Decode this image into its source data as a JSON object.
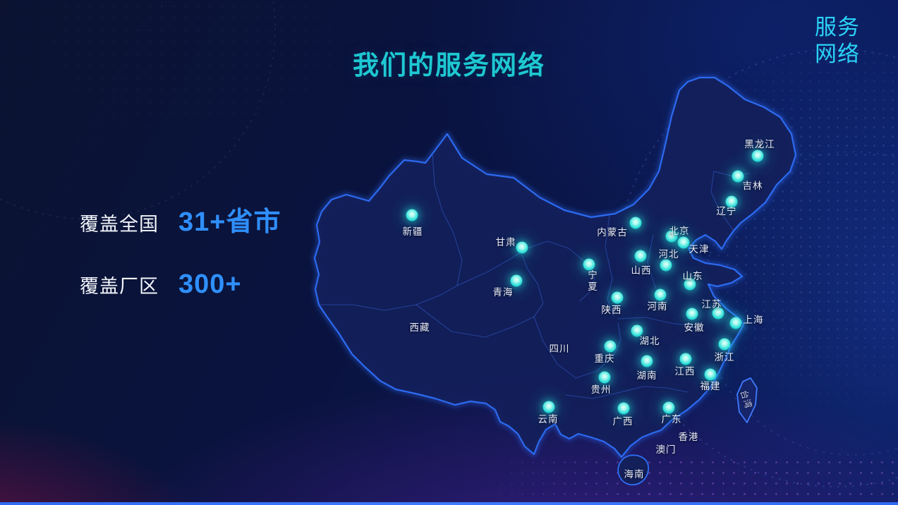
{
  "slide": {
    "title": "我们的服务网络",
    "corner_tag_line1": "服务",
    "corner_tag_line2": "网络"
  },
  "stats": [
    {
      "label": "覆盖全国",
      "value": "31+省市"
    },
    {
      "label": "覆盖厂区",
      "value": "300+"
    }
  ],
  "colors": {
    "title": "#1ec8d2",
    "corner": "#2bd3f7",
    "stat_value": "#2f8ffd",
    "dot": "#2bdfd8",
    "map_border": "#2c6af0",
    "bottom_line": "#2f6bf2"
  },
  "map": {
    "provinces": [
      {
        "name": "黑龙江",
        "dot": [
          1074,
          221
        ],
        "label": [
          1077,
          203
        ]
      },
      {
        "name": "吉林",
        "dot": [
          1046,
          250
        ],
        "label": [
          1067,
          262
        ]
      },
      {
        "name": "辽宁",
        "dot": [
          1037,
          286
        ],
        "label": [
          1030,
          298
        ]
      },
      {
        "name": "内蒙古",
        "dot": [
          901,
          316
        ],
        "label": [
          868,
          328
        ]
      },
      {
        "name": "北京",
        "dot": [
          952,
          335
        ],
        "label": [
          963,
          326
        ]
      },
      {
        "name": "天津",
        "dot": [
          969,
          344
        ],
        "label": [
          991,
          352
        ]
      },
      {
        "name": "河北",
        "dot": [
          944,
          376
        ],
        "label": [
          948,
          359
        ]
      },
      {
        "name": "山西",
        "dot": [
          908,
          363
        ],
        "label": [
          909,
          382
        ]
      },
      {
        "name": "山东",
        "dot": [
          978,
          403
        ],
        "label": [
          982,
          390
        ]
      },
      {
        "name": "新疆",
        "dot": [
          584,
          305
        ],
        "label": [
          585,
          327
        ]
      },
      {
        "name": "甘肃",
        "dot": [
          740,
          351
        ],
        "label": [
          717,
          342
        ]
      },
      {
        "name": "宁夏",
        "dot": [
          835,
          375
        ],
        "label": [
          838,
          399
        ],
        "vertical": true
      },
      {
        "name": "青海",
        "dot": [
          732,
          398
        ],
        "label": [
          713,
          413
        ]
      },
      {
        "name": "西藏",
        "label": [
          595,
          463
        ]
      },
      {
        "name": "陕西",
        "dot": [
          875,
          422
        ],
        "label": [
          867,
          438
        ]
      },
      {
        "name": "河南",
        "dot": [
          936,
          418
        ],
        "label": [
          932,
          433
        ]
      },
      {
        "name": "江苏",
        "dot": [
          1018,
          444
        ],
        "label": [
          1009,
          430
        ]
      },
      {
        "name": "上海",
        "dot": [
          1043,
          458
        ],
        "label": [
          1068,
          452
        ]
      },
      {
        "name": "安徽",
        "dot": [
          981,
          445
        ],
        "label": [
          984,
          463
        ]
      },
      {
        "name": "湖北",
        "dot": [
          903,
          469
        ],
        "label": [
          921,
          482
        ]
      },
      {
        "name": "四川",
        "label": [
          793,
          493
        ]
      },
      {
        "name": "重庆",
        "dot": [
          865,
          491
        ],
        "label": [
          857,
          507
        ]
      },
      {
        "name": "湖南",
        "dot": [
          917,
          512
        ],
        "label": [
          917,
          531
        ]
      },
      {
        "name": "浙江",
        "dot": [
          1027,
          488
        ],
        "label": [
          1027,
          505
        ]
      },
      {
        "name": "江西",
        "dot": [
          972,
          509
        ],
        "label": [
          971,
          525
        ]
      },
      {
        "name": "福建",
        "dot": [
          1007,
          531
        ],
        "label": [
          1007,
          546
        ]
      },
      {
        "name": "贵州",
        "dot": [
          857,
          535
        ],
        "label": [
          852,
          551
        ]
      },
      {
        "name": "云南",
        "dot": [
          778,
          577
        ],
        "label": [
          777,
          593
        ]
      },
      {
        "name": "广西",
        "dot": [
          884,
          579
        ],
        "label": [
          883,
          596
        ]
      },
      {
        "name": "广东",
        "dot": [
          948,
          578
        ],
        "label": [
          952,
          593
        ]
      },
      {
        "name": "香港",
        "label": [
          976,
          618
        ]
      },
      {
        "name": "澳门",
        "label": [
          944,
          636
        ]
      },
      {
        "name": "海南",
        "label": [
          899,
          671
        ]
      },
      {
        "name": "台湾",
        "label": [
          1059,
          566
        ],
        "rotate": 72
      }
    ]
  }
}
